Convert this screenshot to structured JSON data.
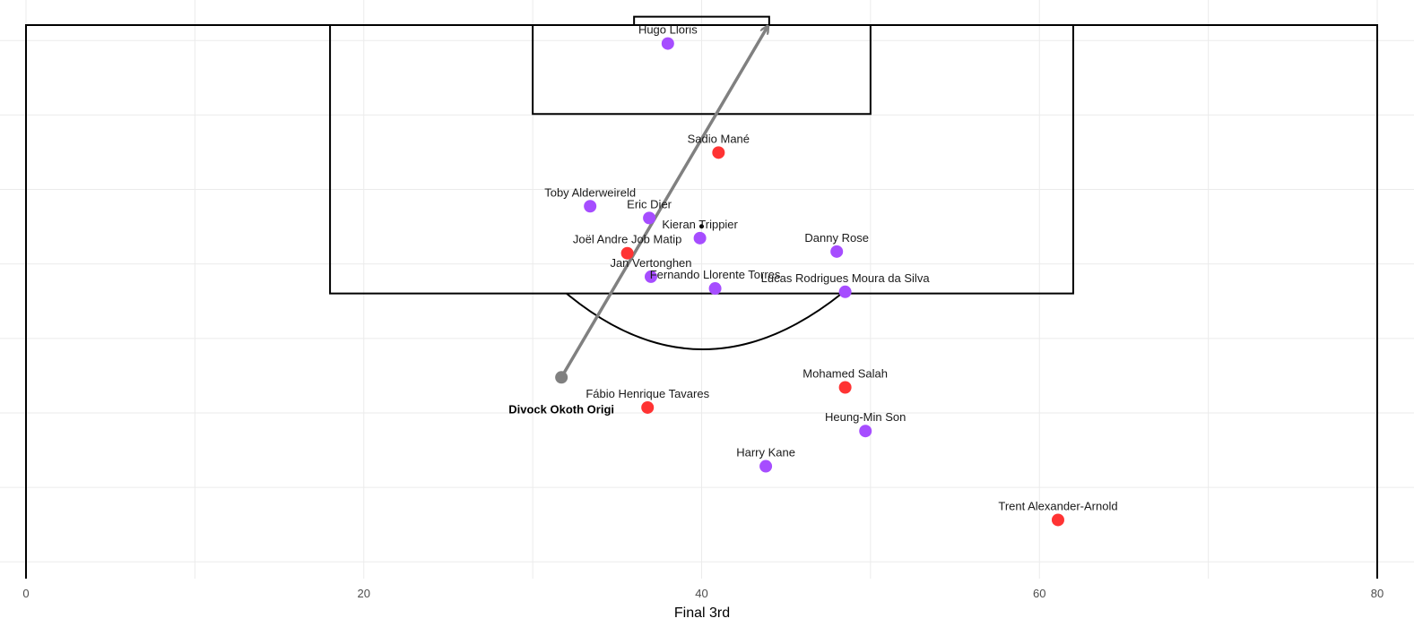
{
  "chart_data": {
    "type": "scatter",
    "title": "",
    "xlabel": "Final 3rd",
    "ylabel": "",
    "xlim": [
      0,
      80
    ],
    "ylim": [
      47,
      80
    ],
    "x_ticks": [
      "0",
      "20",
      "40",
      "60",
      "80"
    ],
    "grid": true,
    "colors": {
      "team_a": "#ff3333",
      "team_b": "#a64dff",
      "shot_arrow": "#808080",
      "shooter": "#808080",
      "pitch_lines": "#000000"
    },
    "shooter": {
      "name": "Divock Okoth Origi",
      "x": 31.7,
      "y": 59.0
    },
    "shot_end": {
      "x": 43.9,
      "y": 79.9
    },
    "penalty_spot": {
      "x": 40,
      "y": 68.0
    },
    "players": [
      {
        "name": "Hugo Lloris",
        "x": 38.0,
        "y": 78.9,
        "team": "team_b"
      },
      {
        "name": "Sadio Mané",
        "x": 41.0,
        "y": 72.4,
        "team": "team_a"
      },
      {
        "name": "Toby Alderweireld",
        "x": 33.4,
        "y": 69.2,
        "team": "team_b"
      },
      {
        "name": "Eric Dier",
        "x": 36.9,
        "y": 68.5,
        "team": "team_b"
      },
      {
        "name": "Joël Andre Job Matip",
        "x": 35.6,
        "y": 66.4,
        "team": "team_a"
      },
      {
        "name": "Kieran Trippier",
        "x": 39.9,
        "y": 67.3,
        "team": "team_b"
      },
      {
        "name": "Jan Vertonghen",
        "x": 37.0,
        "y": 65.0,
        "team": "team_b"
      },
      {
        "name": "Danny Rose",
        "x": 48.0,
        "y": 66.5,
        "team": "team_b"
      },
      {
        "name": "Fernando Llorente Torres",
        "x": 40.8,
        "y": 64.3,
        "team": "team_b"
      },
      {
        "name": "Lucas Rodrigues Moura da Silva",
        "x": 48.5,
        "y": 64.1,
        "team": "team_b"
      },
      {
        "name": "Mohamed Salah",
        "x": 48.5,
        "y": 58.4,
        "team": "team_a"
      },
      {
        "name": "Fábio Henrique Tavares",
        "x": 36.8,
        "y": 57.2,
        "team": "team_a"
      },
      {
        "name": "Heung-Min Son",
        "x": 49.7,
        "y": 55.8,
        "team": "team_b"
      },
      {
        "name": "Harry Kane",
        "x": 43.8,
        "y": 53.7,
        "team": "team_b"
      },
      {
        "name": "Trent Alexander-Arnold",
        "x": 61.1,
        "y": 50.5,
        "team": "team_a"
      }
    ]
  }
}
